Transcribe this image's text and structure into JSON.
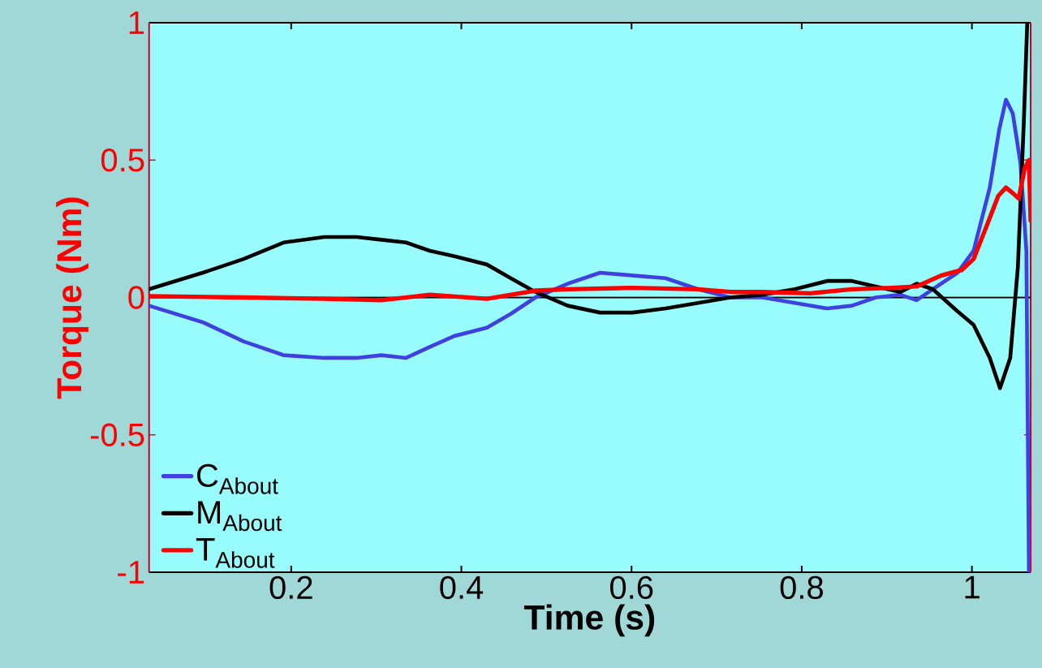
{
  "chart_data": {
    "type": "line",
    "xlabel": "Time (s)",
    "ylabel": "Torque (Nm)",
    "xlim": [
      0.033,
      1.069
    ],
    "ylim": [
      -1,
      1
    ],
    "xticks": [
      0.2,
      0.4,
      0.6,
      0.8,
      1
    ],
    "yticks": [
      -1,
      -0.5,
      0,
      0.5,
      1
    ],
    "grid": false,
    "legend": "bottom left",
    "marker": "none",
    "line_style": "solid",
    "ref_lines": [
      {
        "axis": "y",
        "value": 0,
        "color": "#000000"
      }
    ],
    "series": [
      {
        "name": "C$_{About}$",
        "color": "#4040e0",
        "x": [
          0.033,
          0.096,
          0.144,
          0.191,
          0.239,
          0.277,
          0.306,
          0.335,
          0.363,
          0.392,
          0.43,
          0.458,
          0.487,
          0.525,
          0.563,
          0.601,
          0.64,
          0.678,
          0.716,
          0.754,
          0.792,
          0.83,
          0.859,
          0.887,
          0.916,
          0.935,
          0.954,
          0.983,
          1.002,
          1.021,
          1.032,
          1.04,
          1.048,
          1.057,
          1.064,
          1.067
        ],
        "values": [
          -0.03,
          -0.09,
          -0.16,
          -0.21,
          -0.22,
          -0.22,
          -0.21,
          -0.22,
          -0.18,
          -0.14,
          -0.11,
          -0.06,
          0.0,
          0.05,
          0.09,
          0.08,
          0.07,
          0.03,
          0.0,
          0.0,
          -0.02,
          -0.04,
          -0.03,
          0.0,
          0.01,
          -0.01,
          0.03,
          0.09,
          0.17,
          0.4,
          0.61,
          0.72,
          0.67,
          0.49,
          0.17,
          -1.0
        ]
      },
      {
        "name": "M$_{About}$",
        "color": "#000000",
        "x": [
          0.033,
          0.096,
          0.144,
          0.191,
          0.239,
          0.277,
          0.306,
          0.335,
          0.363,
          0.392,
          0.43,
          0.458,
          0.487,
          0.525,
          0.563,
          0.601,
          0.64,
          0.678,
          0.716,
          0.754,
          0.792,
          0.83,
          0.859,
          0.887,
          0.916,
          0.935,
          0.954,
          0.983,
          1.002,
          1.021,
          1.033,
          1.045,
          1.054,
          1.061,
          1.065
        ],
        "values": [
          0.03,
          0.09,
          0.14,
          0.2,
          0.22,
          0.22,
          0.21,
          0.2,
          0.17,
          0.15,
          0.12,
          0.07,
          0.02,
          -0.03,
          -0.055,
          -0.055,
          -0.04,
          -0.02,
          0.0,
          0.01,
          0.03,
          0.06,
          0.06,
          0.04,
          0.02,
          0.05,
          0.03,
          -0.05,
          -0.1,
          -0.22,
          -0.33,
          -0.22,
          0.11,
          0.64,
          1.0
        ]
      },
      {
        "name": "T$_{About}$",
        "color": "#ff0000",
        "x": [
          0.033,
          0.144,
          0.239,
          0.306,
          0.363,
          0.43,
          0.487,
          0.525,
          0.601,
          0.678,
          0.716,
          0.754,
          0.81,
          0.859,
          0.906,
          0.935,
          0.964,
          0.988,
          1.002,
          1.016,
          1.031,
          1.04,
          1.048,
          1.055,
          1.062,
          1.067,
          1.069
        ],
        "values": [
          0.005,
          0.0,
          -0.005,
          -0.01,
          0.01,
          -0.005,
          0.025,
          0.03,
          0.035,
          0.03,
          0.02,
          0.02,
          0.015,
          0.03,
          0.035,
          0.04,
          0.08,
          0.1,
          0.14,
          0.25,
          0.37,
          0.4,
          0.38,
          0.36,
          0.47,
          0.5,
          0.28
        ]
      }
    ]
  }
}
